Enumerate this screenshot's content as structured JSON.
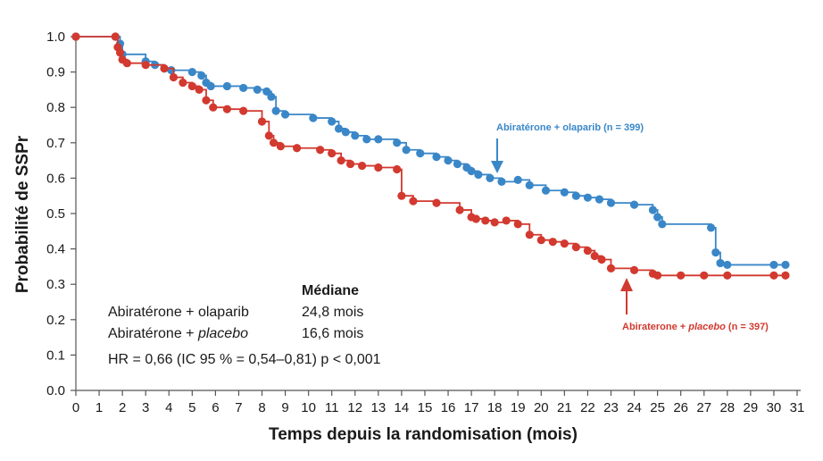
{
  "chart_data": {
    "type": "line",
    "xlabel": "Temps depuis la randomisation (mois)",
    "ylabel": "Probabilité de SSPr",
    "xlim": [
      0,
      31
    ],
    "ylim": [
      0,
      1
    ],
    "x_ticks": [
      0,
      1,
      2,
      3,
      4,
      5,
      6,
      7,
      8,
      9,
      10,
      11,
      12,
      13,
      14,
      15,
      16,
      17,
      18,
      19,
      20,
      21,
      22,
      23,
      24,
      25,
      26,
      27,
      28,
      29,
      30,
      31
    ],
    "y_ticks": [
      0.0,
      0.1,
      0.2,
      0.3,
      0.4,
      0.5,
      0.6,
      0.7,
      0.8,
      0.9,
      1.0
    ],
    "y_tick_labels": [
      "0.0",
      "0.1",
      "0.2",
      "0.3",
      "0.4",
      "0.5",
      "0.6",
      "0.7",
      "0.8",
      "0.9",
      "1.0"
    ],
    "x_tick_labels": [
      "0",
      "1",
      "2",
      "3",
      "4",
      "5",
      "6",
      "7",
      "8",
      "9",
      "10",
      "11",
      "12",
      "13",
      "14",
      "15",
      "16",
      "17",
      "18",
      "19",
      "20",
      "21",
      "22",
      "23",
      "24",
      "25",
      "26",
      "27",
      "28",
      "29",
      "30",
      "31"
    ],
    "series": [
      {
        "name": "Abiratérone + olaparib (n = 399)",
        "color": "#3a87c8",
        "x": [
          0,
          1.7,
          1.9,
          2.0,
          3.0,
          3.4,
          3.8,
          4.1,
          5.0,
          5.4,
          5.6,
          5.8,
          6.5,
          7.2,
          7.8,
          8.2,
          8.4,
          8.6,
          9.0,
          10.2,
          11.0,
          11.3,
          11.6,
          12.0,
          12.5,
          13.0,
          13.8,
          14.2,
          14.8,
          15.5,
          16.0,
          16.4,
          16.8,
          17.0,
          17.3,
          17.8,
          18.3,
          19.0,
          19.5,
          20.2,
          21.0,
          21.5,
          22.0,
          22.5,
          23.0,
          24.0,
          24.8,
          25.0,
          25.2,
          27.3,
          27.5,
          27.7,
          28.0,
          30.0,
          30.5
        ],
        "y": [
          1.0,
          1.0,
          0.98,
          0.95,
          0.93,
          0.92,
          0.91,
          0.905,
          0.9,
          0.89,
          0.87,
          0.86,
          0.86,
          0.855,
          0.85,
          0.845,
          0.83,
          0.79,
          0.78,
          0.77,
          0.76,
          0.74,
          0.73,
          0.72,
          0.71,
          0.71,
          0.7,
          0.68,
          0.67,
          0.66,
          0.65,
          0.64,
          0.63,
          0.62,
          0.61,
          0.6,
          0.59,
          0.595,
          0.58,
          0.565,
          0.56,
          0.55,
          0.545,
          0.54,
          0.53,
          0.525,
          0.51,
          0.49,
          0.47,
          0.46,
          0.39,
          0.36,
          0.355,
          0.355,
          0.355
        ]
      },
      {
        "name": "Abiraterone + placebo (n = 397)",
        "color": "#d2392f",
        "x": [
          0,
          1.7,
          1.8,
          1.9,
          2.0,
          2.2,
          3.0,
          3.8,
          4.2,
          4.6,
          5.0,
          5.3,
          5.6,
          5.9,
          6.5,
          7.2,
          8.0,
          8.3,
          8.5,
          8.8,
          9.5,
          10.5,
          11.0,
          11.4,
          11.8,
          12.3,
          13.0,
          13.8,
          14.0,
          14.5,
          15.5,
          16.5,
          17.0,
          17.2,
          17.6,
          18.0,
          18.5,
          19.0,
          19.5,
          20.0,
          20.5,
          21.0,
          21.5,
          22.0,
          22.3,
          22.6,
          23.0,
          24.0,
          24.8,
          25.0,
          26.0,
          27.0,
          28.0,
          30.0,
          30.5
        ],
        "y": [
          1.0,
          1.0,
          0.97,
          0.955,
          0.935,
          0.925,
          0.92,
          0.91,
          0.885,
          0.87,
          0.86,
          0.85,
          0.82,
          0.8,
          0.795,
          0.79,
          0.76,
          0.72,
          0.7,
          0.69,
          0.685,
          0.68,
          0.67,
          0.65,
          0.64,
          0.635,
          0.63,
          0.625,
          0.55,
          0.535,
          0.53,
          0.51,
          0.49,
          0.485,
          0.48,
          0.475,
          0.48,
          0.47,
          0.44,
          0.425,
          0.42,
          0.415,
          0.405,
          0.395,
          0.38,
          0.37,
          0.345,
          0.34,
          0.33,
          0.325,
          0.325,
          0.325,
          0.325,
          0.325,
          0.325
        ]
      }
    ],
    "annotations": {
      "olaparib_label": "Abiratérone + olaparib (n = 399)",
      "placebo_label_pre": "Abiraterone + ",
      "placebo_label_italic": "placebo",
      "placebo_label_post": " (n = 397)",
      "median_header": "Médiane",
      "legend_olaparib": "Abiratérone + olaparib",
      "legend_placebo_pre": "Abiratérone + ",
      "legend_placebo_italic": "placebo",
      "median_olaparib": "24,8 mois",
      "median_placebo": "16,6 mois",
      "hr_text": "HR = 0,66 (IC 95 % = 0,54–0,81) p < 0,001"
    },
    "grid": false
  }
}
